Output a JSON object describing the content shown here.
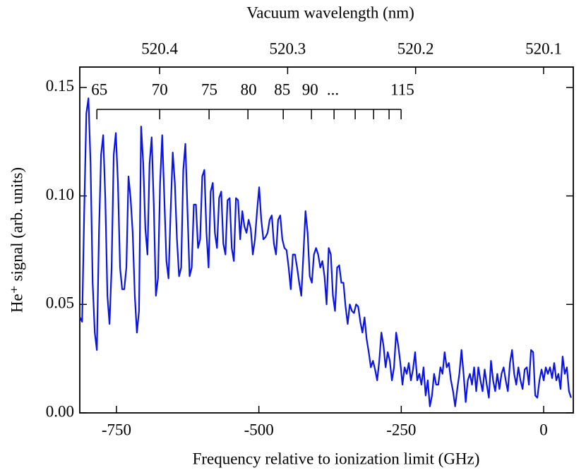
{
  "chart_data": {
    "type": "line",
    "title": "Vacuum wavelength (nm)",
    "xlabel": "Frequency relative to ionization limit (GHz)",
    "ylabel": "He⁺ signal (arb. units)",
    "color": "#0a14e6",
    "xlim": [
      -814.4,
      52
    ],
    "xticks": [
      -750,
      -500,
      -250,
      0
    ],
    "ylim": [
      0,
      0.1594
    ],
    "yticks": [
      {
        "value": 0,
        "label": "0.00"
      },
      0.05,
      {
        "value": 0.1,
        "label": "0.10"
      },
      0.15
    ],
    "x2lim": [
      520.4624,
      520.0768
    ],
    "x2ticks": [
      520.4,
      520.3,
      520.2,
      520.1
    ],
    "comb": {
      "ticks": [
        -784.4,
        -674.1,
        -587.4,
        -519.2,
        -457.2,
        -407.7,
        -368.0,
        -330.9,
        -298.6,
        -271.4,
        -250.3
      ],
      "labels": [
        "65",
        "70",
        "75",
        "80",
        "85",
        "90",
        "...",
        "115"
      ],
      "label_x": [
        -780,
        -674,
        -587,
        -518,
        -459,
        -410,
        -370,
        -248
      ]
    },
    "x": [
      -814,
      -810.3,
      -806.6,
      -802.9,
      -799.2,
      -795.5,
      -791.8,
      -788.1,
      -784.4,
      -780.7,
      -777,
      -773.3,
      -769.6,
      -765.9,
      -762.2,
      -758.5,
      -754.8,
      -751.1,
      -747.4,
      -743.7,
      -740,
      -736.3,
      -732.6,
      -728.9,
      -725.2,
      -721.5,
      -717.8,
      -714.1,
      -710.4,
      -706.7,
      -703,
      -699.3,
      -695.6,
      -691.9,
      -688.2,
      -684.5,
      -680.8,
      -677.1,
      -673.4,
      -669.7,
      -666,
      -662.3,
      -658.6,
      -654.9,
      -651.2,
      -647.5,
      -643.8,
      -640.1,
      -636.4,
      -632.7,
      -629,
      -625.3,
      -621.6,
      -617.9,
      -614.2,
      -610.5,
      -606.8,
      -603.1,
      -599.4,
      -595.7,
      -592,
      -588.3,
      -584.6,
      -580.9,
      -577.2,
      -573.5,
      -569.8,
      -566.1,
      -562.4,
      -558.7,
      -555,
      -551.3,
      -547.6,
      -543.9,
      -540.2,
      -536.5,
      -532.8,
      -529.1,
      -525.4,
      -521.7,
      -518,
      -514.3,
      -510.6,
      -506.9,
      -503.2,
      -499.5,
      -495.8,
      -492.1,
      -488.4,
      -484.7,
      -481,
      -477.3,
      -473.6,
      -469.9,
      -466.2,
      -462.5,
      -458.8,
      -455.1,
      -451.4,
      -447.7,
      -444,
      -440.3,
      -436.6,
      -432.9,
      -429.2,
      -425.5,
      -421.8,
      -418.1,
      -414.4,
      -410.7,
      -407,
      -403.3,
      -399.6,
      -395.9,
      -392.2,
      -388.5,
      -384.8,
      -381.1,
      -377.4,
      -373.7,
      -370,
      -366.3,
      -362.6,
      -358.9,
      -355.2,
      -351.5,
      -347.8,
      -344.1,
      -340.4,
      -336.7,
      -333,
      -329.3,
      -325.6,
      -321.9,
      -318.2,
      -314.5,
      -310.8,
      -307.1,
      -303.4,
      -299.7,
      -296,
      -292.3,
      -288.6,
      -284.9,
      -281.2,
      -277.5,
      -273.8,
      -270.1,
      -266.4,
      -262.7,
      -259,
      -255.3,
      -251.6,
      -247.9,
      -244.2,
      -240.5,
      -236.8,
      -233.1,
      -229.4,
      -225.7,
      -222,
      -218.3,
      -214.6,
      -210.9,
      -207.2,
      -203.5,
      -199.8,
      -196.1,
      -192.4,
      -188.7,
      -185,
      -181.3,
      -177.6,
      -173.9,
      -170.2,
      -166.5,
      -162.8,
      -159.1,
      -155.4,
      -151.7,
      -148,
      -144.3,
      -140.6,
      -136.9,
      -133.2,
      -129.5,
      -125.8,
      -122.1,
      -118.4,
      -114.7,
      -111,
      -107.3,
      -103.6,
      -99.9,
      -96.2,
      -92.5,
      -88.8,
      -85.1,
      -81.4,
      -77.7,
      -74,
      -70.3,
      -66.6,
      -62.9,
      -59.2,
      -55.5,
      -51.8,
      -48.1,
      -44.4,
      -40.7,
      -37,
      -33.3,
      -29.6,
      -25.9,
      -22.2,
      -18.5,
      -14.8,
      -11.1,
      -7.4,
      -3.7,
      0,
      3.7,
      7.4,
      11.1,
      14.8,
      18.5,
      22.2,
      25.9,
      29.6,
      33.3,
      37,
      40.7,
      44.4,
      48.1
    ],
    "values": [
      0.044,
      0.042,
      0.093,
      0.138,
      0.145,
      0.115,
      0.06,
      0.037,
      0.029,
      0.083,
      0.119,
      0.128,
      0.099,
      0.054,
      0.041,
      0.067,
      0.119,
      0.129,
      0.106,
      0.067,
      0.057,
      0.057,
      0.067,
      0.109,
      0.099,
      0.083,
      0.054,
      0.037,
      0.047,
      0.132,
      0.115,
      0.085,
      0.073,
      0.115,
      0.127,
      0.096,
      0.054,
      0.062,
      0.106,
      0.128,
      0.099,
      0.07,
      0.062,
      0.093,
      0.12,
      0.106,
      0.08,
      0.063,
      0.067,
      0.112,
      0.124,
      0.093,
      0.063,
      0.067,
      0.096,
      0.096,
      0.076,
      0.08,
      0.109,
      0.112,
      0.083,
      0.067,
      0.102,
      0.106,
      0.083,
      0.076,
      0.099,
      0.102,
      0.078,
      0.073,
      0.098,
      0.099,
      0.076,
      0.07,
      0.099,
      0.098,
      0.08,
      0.093,
      0.086,
      0.083,
      0.089,
      0.085,
      0.073,
      0.08,
      0.093,
      0.104,
      0.089,
      0.08,
      0.081,
      0.083,
      0.089,
      0.091,
      0.078,
      0.073,
      0.089,
      0.091,
      0.08,
      0.076,
      0.075,
      0.067,
      0.057,
      0.073,
      0.073,
      0.067,
      0.06,
      0.054,
      0.073,
      0.093,
      0.083,
      0.063,
      0.06,
      0.073,
      0.076,
      0.073,
      0.067,
      0.07,
      0.063,
      0.05,
      0.076,
      0.073,
      0.054,
      0.047,
      0.067,
      0.068,
      0.06,
      0.06,
      0.049,
      0.041,
      0.05,
      0.047,
      0.046,
      0.05,
      0.049,
      0.042,
      0.037,
      0.044,
      0.034,
      0.028,
      0.021,
      0.024,
      0.02,
      0.015,
      0.024,
      0.037,
      0.031,
      0.021,
      0.028,
      0.024,
      0.015,
      0.021,
      0.037,
      0.031,
      0.023,
      0.013,
      0.021,
      0.018,
      0.023,
      0.015,
      0.02,
      0.028,
      0.015,
      0.018,
      0.013,
      0.021,
      0.008,
      0.015,
      0.003,
      0.008,
      0.018,
      0.013,
      0.013,
      0.021,
      0.018,
      0.028,
      0.021,
      0.023,
      0.015,
      0.01,
      0.003,
      0.011,
      0.018,
      0.029,
      0.018,
      0.005,
      0.015,
      0.018,
      0.013,
      0.021,
      0.01,
      0.021,
      0.015,
      0.01,
      0.02,
      0.013,
      0.007,
      0.024,
      0.015,
      0.01,
      0.018,
      0.011,
      0.018,
      0.021,
      0.015,
      0.01,
      0.023,
      0.029,
      0.018,
      0.013,
      0.021,
      0.015,
      0.011,
      0.02,
      0.021,
      0.013,
      0.029,
      0.028,
      0.008,
      0.007,
      0.015,
      0.02,
      0.015,
      0.021,
      0.018,
      0.021,
      0.016,
      0.023,
      0.015,
      0.018,
      0.011,
      0.026,
      0.018,
      0.021,
      0.01,
      0.007
    ]
  }
}
